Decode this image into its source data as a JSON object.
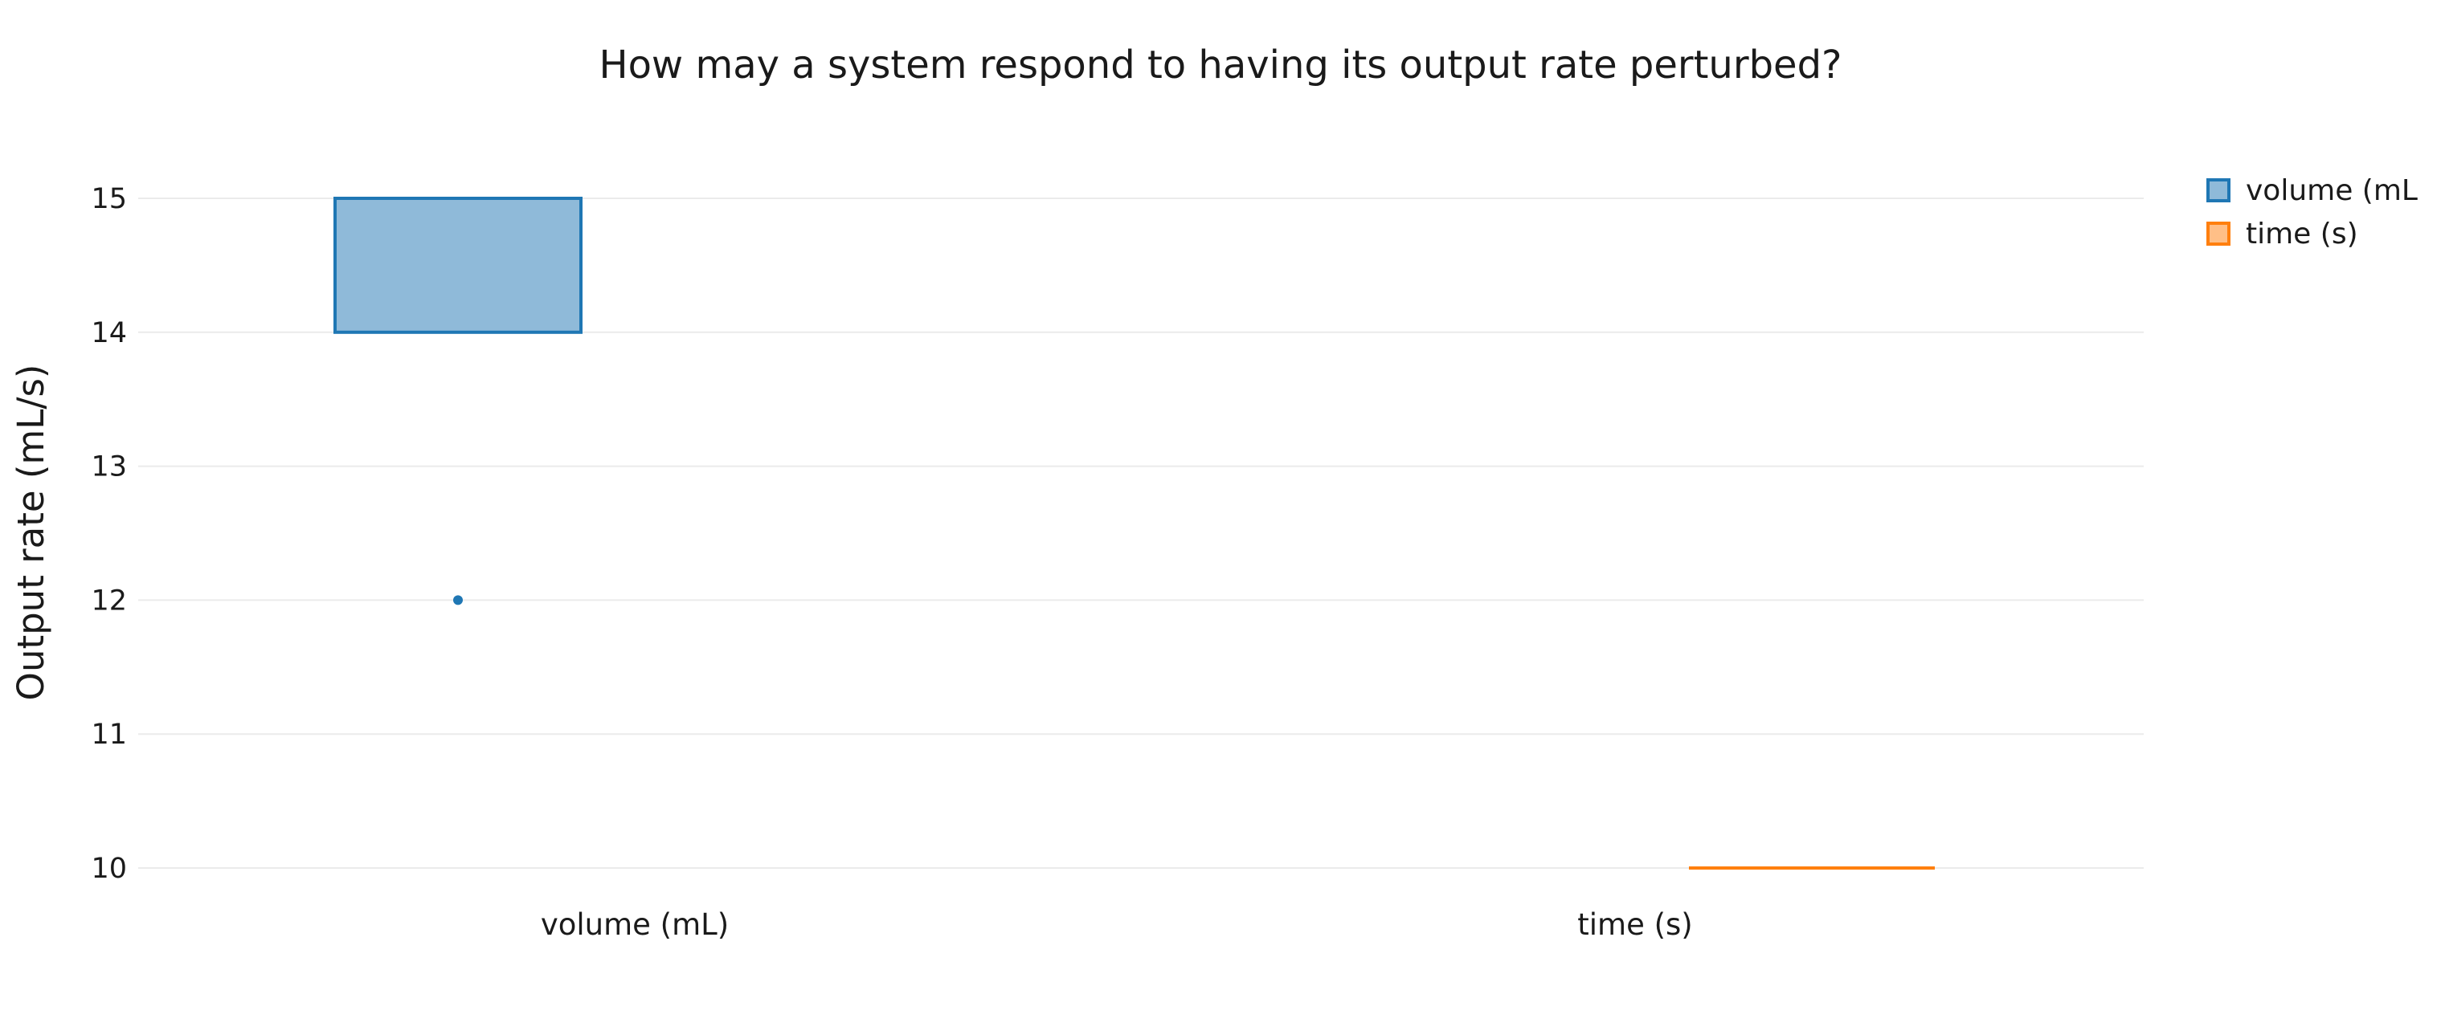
{
  "chart_data": {
    "type": "box",
    "title": "How may a system respond to having its output rate perturbed?",
    "xlabel": "",
    "ylabel": "Output rate (mL/s)",
    "ylim": [
      9.5,
      15.5
    ],
    "yticks": [
      10,
      11,
      12,
      13,
      14,
      15
    ],
    "categories": [
      "volume (mL)",
      "time (s)"
    ],
    "grid": true,
    "legend_position": "top-right",
    "series": [
      {
        "name": "volume (mL",
        "category": "volume (mL)",
        "color": "#1f77b4",
        "fill": "#8fbad9",
        "q1": 14,
        "median": 15,
        "q3": 15,
        "whisker_low": 14,
        "whisker_high": 15,
        "outliers": [
          12
        ]
      },
      {
        "name": "time (s)",
        "category": "time (s)",
        "color": "#ff7f0e",
        "fill": "#ffbf87",
        "q1": 10,
        "median": 10,
        "q3": 10,
        "whisker_low": 10,
        "whisker_high": 10,
        "outliers": []
      }
    ]
  }
}
